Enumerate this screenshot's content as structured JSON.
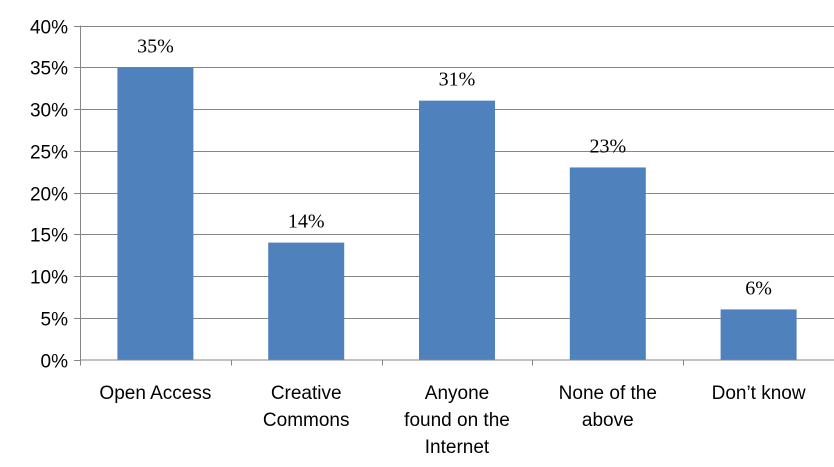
{
  "chart_data": {
    "type": "bar",
    "categories": [
      [
        "Open Access"
      ],
      [
        "Creative",
        "Commons"
      ],
      [
        "Anyone",
        "found on the",
        "Internet"
      ],
      [
        "None of the",
        "above"
      ],
      [
        "Don’t know"
      ]
    ],
    "values": [
      35,
      14,
      31,
      23,
      6
    ],
    "data_labels": [
      "35%",
      "14%",
      "31%",
      "23%",
      "6%"
    ],
    "y_ticks": [
      "0%",
      "5%",
      "10%",
      "15%",
      "20%",
      "25%",
      "30%",
      "35%",
      "40%"
    ],
    "ylim": [
      0,
      40
    ],
    "grid": true,
    "legend": "none",
    "bar_color": "#4F81BD"
  }
}
